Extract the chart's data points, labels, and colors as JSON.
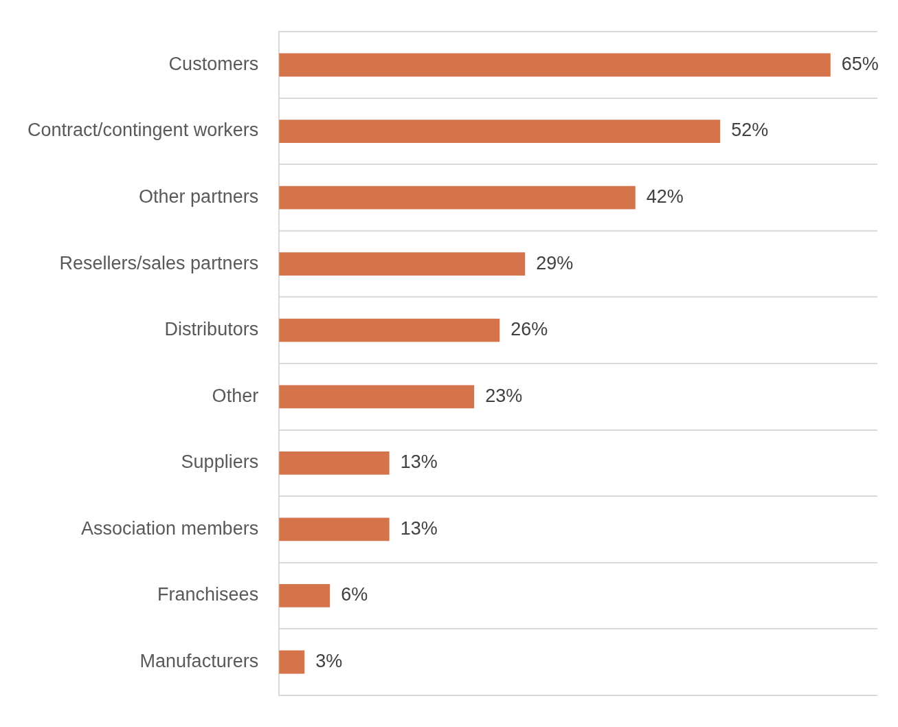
{
  "chart_data": {
    "type": "bar",
    "orientation": "horizontal",
    "categories": [
      "Customers",
      "Contract/contingent workers",
      "Other partners",
      "Resellers/sales partners",
      "Distributors",
      "Other",
      "Suppliers",
      "Association members",
      "Franchisees",
      "Manufacturers"
    ],
    "values": [
      65,
      52,
      42,
      29,
      26,
      23,
      13,
      13,
      6,
      3
    ],
    "value_labels": [
      "65%",
      "52%",
      "42%",
      "29%",
      "26%",
      "23%",
      "13%",
      "13%",
      "6%",
      "3%"
    ],
    "color": "#d5734a",
    "grid": "y",
    "legend": false,
    "tick_labels": "y"
  }
}
